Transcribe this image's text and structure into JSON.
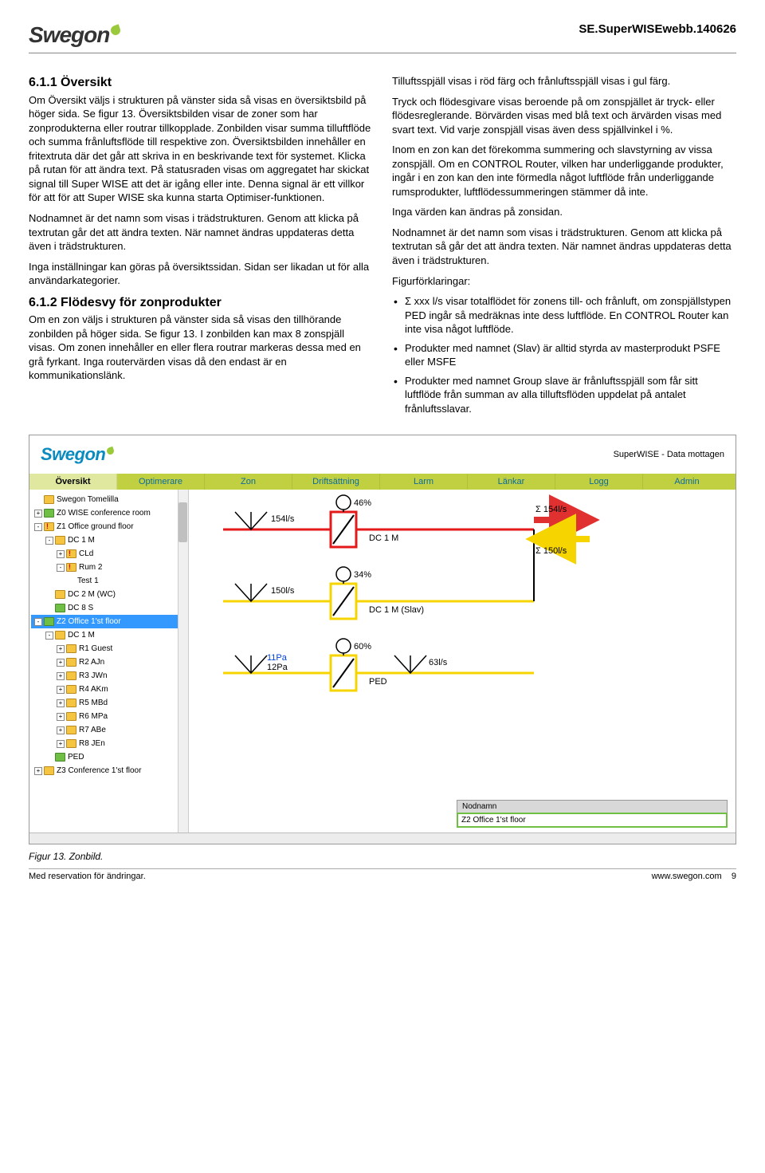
{
  "header": {
    "logo_text": "Swegon",
    "doc_id": "SE.SuperWISEwebb.140626"
  },
  "section1": {
    "title": "6.1.1 Översikt",
    "p1": "Om Översikt väljs i strukturen på vänster sida så visas en översiktsbild på höger sida. Se figur 13. Översiktsbilden visar de zoner som har zonprodukterna eller routrar tillkopplade. Zonbilden visar summa tilluftflöde och summa frånluftsflöde till respektive zon. Översiktsbilden innehåller en fritextruta där det går att skriva in en beskrivande text för systemet. Klicka på rutan för att ändra text. På statusraden visas om aggregatet har skickat signal till Super WISE att det är igång eller inte. Denna signal är ett villkor för att för att Super WISE ska kunna starta Optimiser-funktionen.",
    "p2": "Nodnamnet är det namn som visas i trädstrukturen. Genom att klicka på textrutan går det att ändra texten. När namnet ändras uppdateras detta även i trädstrukturen.",
    "p3": "Inga inställningar kan göras på översiktssidan. Sidan ser likadan ut för alla användarkategorier."
  },
  "section2": {
    "title": "6.1.2 Flödesvy för zonprodukter",
    "p1": "Om en zon väljs i strukturen på vänster sida så visas den tillhörande zonbilden på höger sida. Se figur 13. I zonbilden kan max 8 zonspjäll visas. Om zonen innehåller en eller flera routrar markeras dessa med en grå fyrkant. Inga routervärden visas då den endast är en kommunikationslänk."
  },
  "right": {
    "p1": "Tilluftsspjäll visas i röd färg och frånluftsspjäll visas i gul färg.",
    "p2": "Tryck och flödesgivare visas beroende på om zonspjället är tryck- eller flödesreglerande. Börvärden visas med blå text och ärvärden visas med svart text. Vid varje zonspjäll visas även dess spjällvinkel i %.",
    "p3": "Inom en zon kan det förekomma summering och slavstyrning av vissa zonspjäll. Om en CONTROL Router, vilken har underliggande produkter, ingår i en zon kan den inte förmedla något luftflöde från underliggande rumsprodukter, luftflödessummeringen stämmer då inte.",
    "p4": "Inga värden kan ändras på zonsidan.",
    "p5": "Nodnamnet är det namn som visas i trädstrukturen. Genom att klicka på textrutan så går det att ändra texten. När namnet ändras uppdateras detta även i trädstrukturen.",
    "fig_label": "Figurförklaringar:",
    "bullets": [
      "Σ xxx l/s visar totalflödet för zonens till- och frånluft, om zonspjällstypen PED ingår så medräknas inte dess luftflöde. En CONTROL Router kan inte visa något luftflöde.",
      "Produkter med namnet (Slav) är alltid styrda av masterprodukt PSFE eller MSFE",
      "Produkter med namnet Group slave är frånluftsspjäll som får sitt luftflöde från summan av alla tilluftsflöden uppdelat på antalet frånluftsslavar."
    ]
  },
  "app": {
    "logo": "Swegon",
    "status": "SuperWISE - Data mottagen",
    "tabs": [
      "Översikt",
      "Optimerare",
      "Zon",
      "Driftsättning",
      "Larm",
      "Länkar",
      "Logg",
      "Admin"
    ],
    "active_tab_index": 0,
    "tree": [
      {
        "d": 0,
        "ico": "folder-yellow",
        "exp": "",
        "label": "Swegon Tomelilla"
      },
      {
        "d": 0,
        "ico": "folder-green",
        "exp": "+",
        "label": "Z0 WISE conference room"
      },
      {
        "d": 0,
        "ico": "folder-warn",
        "exp": "-",
        "label": "Z1 Office ground floor"
      },
      {
        "d": 1,
        "ico": "folder-yellow",
        "exp": "-",
        "label": "DC 1 M"
      },
      {
        "d": 2,
        "ico": "folder-warn",
        "exp": "+",
        "label": "CLd"
      },
      {
        "d": 2,
        "ico": "folder-warn",
        "exp": "-",
        "label": "Rum 2"
      },
      {
        "d": 3,
        "ico": "",
        "exp": "",
        "label": "Test 1"
      },
      {
        "d": 1,
        "ico": "folder-yellow",
        "exp": "",
        "label": "DC 2 M (WC)"
      },
      {
        "d": 1,
        "ico": "folder-green",
        "exp": "",
        "label": "DC 8 S"
      },
      {
        "d": 0,
        "ico": "folder-green",
        "exp": "-",
        "label": "Z2 Office 1'st floor",
        "sel": true
      },
      {
        "d": 1,
        "ico": "folder-yellow",
        "exp": "-",
        "label": "DC 1 M"
      },
      {
        "d": 2,
        "ico": "folder-yellow",
        "exp": "+",
        "label": "R1 Guest"
      },
      {
        "d": 2,
        "ico": "folder-yellow",
        "exp": "+",
        "label": "R2 AJn"
      },
      {
        "d": 2,
        "ico": "folder-yellow",
        "exp": "+",
        "label": "R3 JWn"
      },
      {
        "d": 2,
        "ico": "folder-yellow",
        "exp": "+",
        "label": "R4 AKm"
      },
      {
        "d": 2,
        "ico": "folder-yellow",
        "exp": "+",
        "label": "R5 MBd"
      },
      {
        "d": 2,
        "ico": "folder-yellow",
        "exp": "+",
        "label": "R6 MPa"
      },
      {
        "d": 2,
        "ico": "folder-yellow",
        "exp": "+",
        "label": "R7 ABe"
      },
      {
        "d": 2,
        "ico": "folder-yellow",
        "exp": "+",
        "label": "R8 JEn"
      },
      {
        "d": 1,
        "ico": "folder-green",
        "exp": "",
        "label": "PED"
      },
      {
        "d": 0,
        "ico": "folder-yellow",
        "exp": "+",
        "label": "Z3 Conference 1'st floor"
      }
    ],
    "diagram": {
      "colors": {
        "red": "#e41a1a",
        "yellow": "#f5d400",
        "black": "#000",
        "blue": "#0044dd",
        "arrow_red": "#e03030",
        "arrow_yellow": "#f5d400"
      },
      "sum_supply": "Σ 154l/s",
      "sum_exhaust": "Σ 150l/s",
      "rows": [
        {
          "flow": "154l/s",
          "pct": "46%",
          "name": "DC 1 M",
          "color": "red"
        },
        {
          "flow": "150l/s",
          "pct": "34%",
          "name": "DC 1 M (Slav)",
          "color": "yellow"
        },
        {
          "press_blue": "11Pa",
          "press_black": "12Pa",
          "pct": "60%",
          "extra": "63l/s",
          "name": "PED",
          "color": "yellow"
        }
      ]
    },
    "node_label": "Nodnamn",
    "node_value": "Z2 Office 1'st floor"
  },
  "caption": "Figur 13. Zonbild.",
  "footer": {
    "left": "Med reservation för ändringar.",
    "right_site": "www.swegon.com",
    "right_page": "9"
  }
}
